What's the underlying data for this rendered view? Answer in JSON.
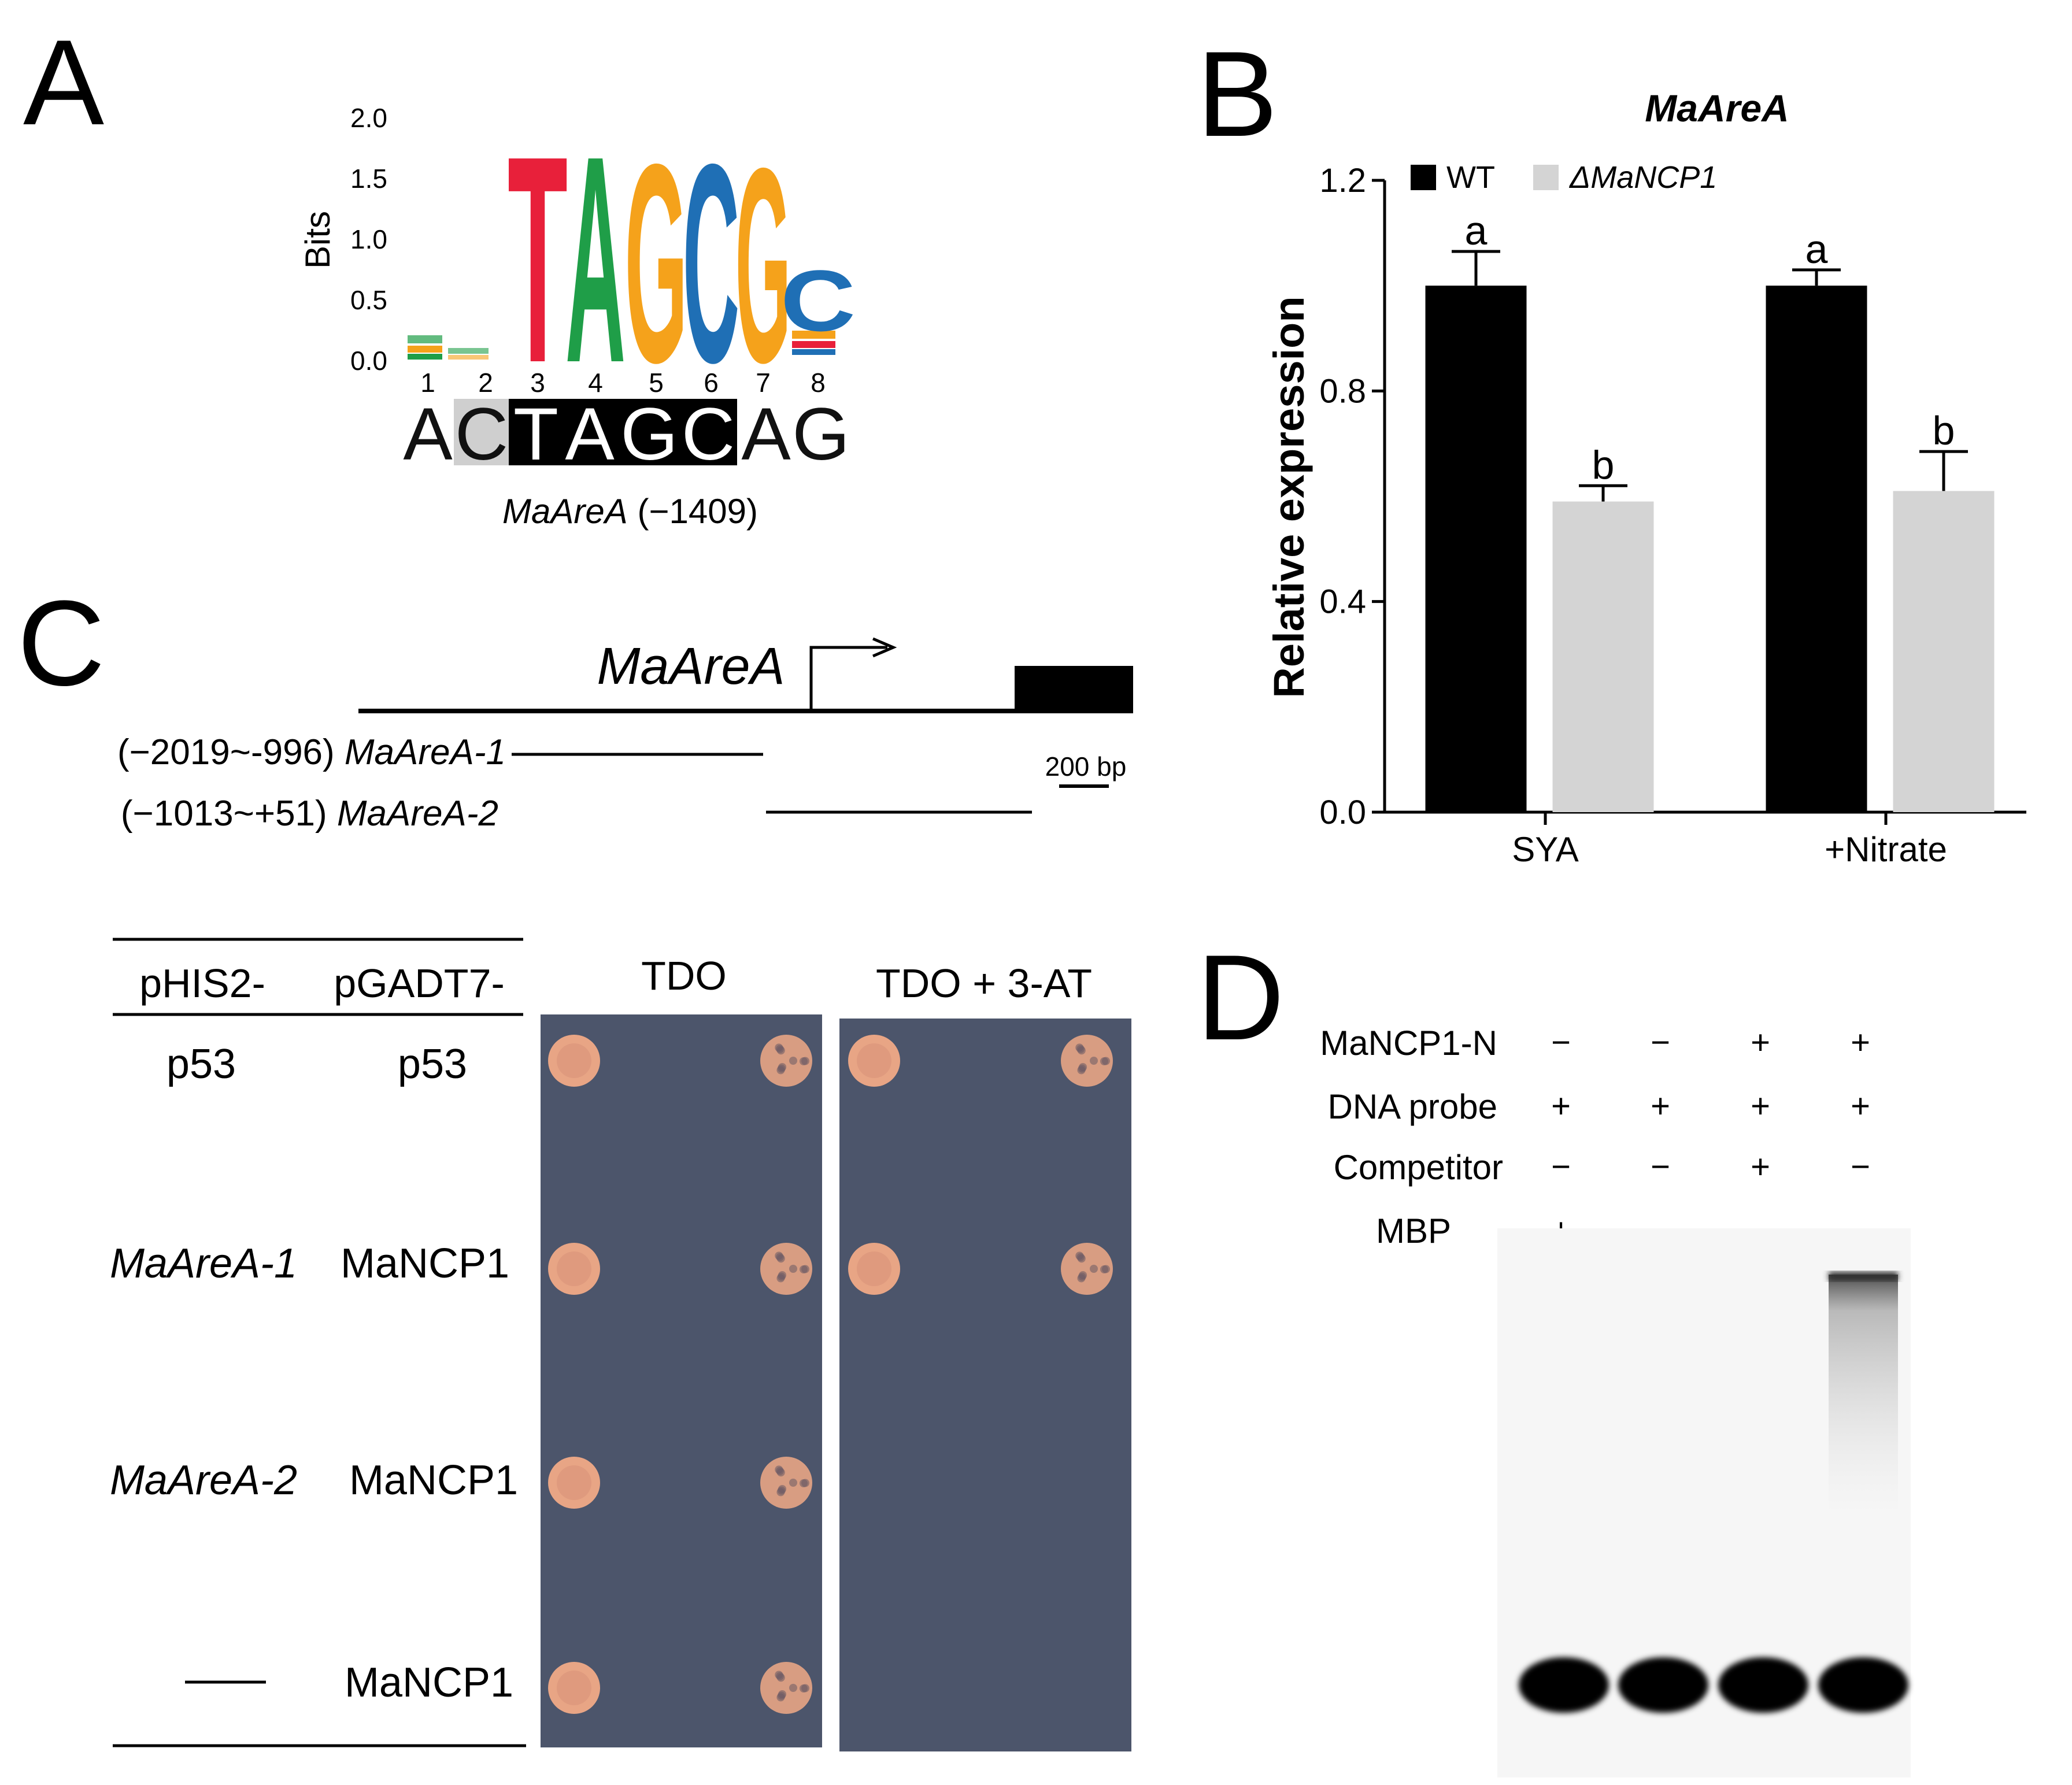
{
  "panels": {
    "A": {
      "letter": "A",
      "y_axis_label": "Bits",
      "y_ticks": [
        "2.0",
        "1.5",
        "1.0",
        "0.5",
        "0.0"
      ],
      "positions": [
        "1",
        "2",
        "3",
        "4",
        "5",
        "6",
        "7",
        "8"
      ],
      "logo_letters": [
        {
          "text": "T",
          "color": "#e8203a"
        },
        {
          "text": "A",
          "color": "#1f9e48"
        },
        {
          "text": "G",
          "color": "#f5a21b"
        },
        {
          "text": "C",
          "color": "#1f6fb5"
        },
        {
          "text": "G",
          "color": "#f5a21b"
        },
        {
          "text": "C",
          "color": "#1f6fb5"
        }
      ],
      "sequence": [
        "A",
        "C",
        "T",
        "A",
        "G",
        "C",
        "A",
        "G"
      ],
      "caption_gene": "MaAreA",
      "caption_position": " (−1409)"
    },
    "B": {
      "letter": "B"
    },
    "C": {
      "letter": "C",
      "gene_label": "MaAreA",
      "fragment1_range": "(−2019~-996) ",
      "fragment1_name": "MaAreA-1",
      "fragment2_range": "(−1013~+51) ",
      "fragment2_name": "MaAreA-2",
      "scale_label": "200 bp",
      "table_header_bait": "pHIS2-",
      "table_header_prey": "pGADT7-",
      "media": [
        "TDO",
        "TDO + 3-AT"
      ],
      "rows": [
        {
          "bait": "p53",
          "prey": "p53",
          "growth_tdo": [
            true,
            true
          ],
          "growth_3at": [
            true,
            true
          ]
        },
        {
          "bait": "MaAreA-1",
          "prey": "MaNCP1",
          "growth_tdo": [
            true,
            true
          ],
          "growth_3at": [
            true,
            true
          ]
        },
        {
          "bait": "MaAreA-2",
          "prey": "MaNCP1",
          "growth_tdo": [
            true,
            true
          ],
          "growth_3at": [
            false,
            false
          ]
        },
        {
          "bait": "",
          "prey": "MaNCP1",
          "growth_tdo": [
            true,
            true
          ],
          "growth_3at": [
            false,
            false
          ]
        }
      ],
      "colors": {
        "plate": "#4c556b",
        "colony": "#e8a585"
      }
    },
    "D": {
      "letter": "D",
      "row_labels": [
        "MaNCP1-N",
        "DNA probe",
        "Competitor",
        "MBP"
      ],
      "lanes": [
        {
          "signs": [
            "−",
            "+",
            "−",
            "+"
          ],
          "shifted_band": false
        },
        {
          "signs": [
            "−",
            "+",
            "−",
            "−"
          ],
          "shifted_band": false
        },
        {
          "signs": [
            "+",
            "+",
            "+",
            "−"
          ],
          "shifted_band": false
        },
        {
          "signs": [
            "+",
            "+",
            "−",
            "−"
          ],
          "shifted_band": true
        }
      ]
    }
  },
  "chart_data": {
    "type": "bar",
    "title": "MaAreA",
    "ylabel": "Relative expression",
    "xlabel": "",
    "categories": [
      "SYA",
      "+Nitrate"
    ],
    "ylim": [
      0,
      1.2
    ],
    "y_ticks": [
      0.0,
      0.4,
      0.8,
      1.2
    ],
    "y_tick_labels": [
      "0.0",
      "0.4",
      "0.8",
      "1.2"
    ],
    "series": [
      {
        "name": "WT",
        "color": "#000000",
        "values": [
          1.0,
          1.0
        ],
        "errors": [
          0.065,
          0.03
        ],
        "labels": [
          "a",
          "a"
        ]
      },
      {
        "name": "ΔMaNCP1",
        "color": "#d4d4d4",
        "values": [
          0.59,
          0.61
        ],
        "errors": [
          0.03,
          0.075
        ],
        "labels": [
          "b",
          "b"
        ]
      }
    ],
    "legend_position": "top-left",
    "grid": false
  }
}
